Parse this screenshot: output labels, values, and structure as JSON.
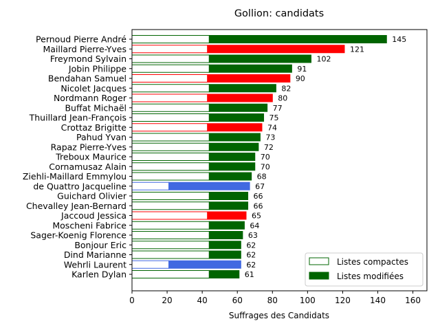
{
  "chart_data": {
    "type": "bar",
    "orientation": "horizontal",
    "stacked": true,
    "title": "Gollion: candidats",
    "xlabel": "Suffrages des Candidats",
    "ylabel": "",
    "xlim": [
      0,
      168
    ],
    "xticks": [
      0,
      20,
      40,
      60,
      80,
      100,
      120,
      140,
      160
    ],
    "grid": false,
    "legend": {
      "placement": "bottom-right",
      "entries": [
        {
          "label": "Listes compactes",
          "style": "outline",
          "color": "#006400"
        },
        {
          "label": "Listes modifiées",
          "style": "filled",
          "color": "#006400"
        }
      ]
    },
    "categories": [
      "Pernoud Pierre André",
      "Maillard Pierre-Yves",
      "Freymond Sylvain",
      "Jobin Philippe",
      "Bendahan Samuel",
      "Nicolet Jacques",
      "Nordmann Roger",
      "Buffat Michaël",
      "Thuillard Jean-François",
      "Crottaz Brigitte",
      "Pahud Yvan",
      "Rapaz Pierre-Yves",
      "Treboux Maurice",
      "Cornamusaz Alain",
      "Ziehli-Maillard Emmylou",
      "de Quattro Jacqueline",
      "Guichard Olivier",
      "Chevalley Jean-Bernard",
      "Jaccoud Jessica",
      "Moscheni Fabrice",
      "Sager-Koenig Florence",
      "Bonjour Eric",
      "Dind Marianne",
      "Wehrli Laurent",
      "Karlen Dylan"
    ],
    "colors": [
      "#006400",
      "#ff0000",
      "#006400",
      "#006400",
      "#ff0000",
      "#006400",
      "#ff0000",
      "#006400",
      "#006400",
      "#ff0000",
      "#006400",
      "#006400",
      "#006400",
      "#006400",
      "#006400",
      "#4169e1",
      "#006400",
      "#006400",
      "#ff0000",
      "#006400",
      "#006400",
      "#006400",
      "#006400",
      "#4169e1",
      "#006400"
    ],
    "series": [
      {
        "name": "Listes compactes",
        "values": [
          44,
          43,
          44,
          44,
          43,
          44,
          43,
          44,
          44,
          43,
          44,
          44,
          44,
          44,
          44,
          21,
          44,
          44,
          43,
          44,
          44,
          44,
          44,
          21,
          44
        ]
      },
      {
        "name": "Listes modifiées",
        "values": [
          101,
          78,
          58,
          47,
          47,
          38,
          37,
          33,
          31,
          31,
          29,
          28,
          26,
          26,
          24,
          46,
          22,
          22,
          22,
          20,
          19,
          18,
          18,
          41,
          17
        ]
      }
    ],
    "totals": [
      145,
      121,
      102,
      91,
      90,
      82,
      80,
      77,
      75,
      74,
      73,
      72,
      70,
      70,
      68,
      67,
      66,
      66,
      65,
      64,
      63,
      62,
      62,
      62,
      61
    ]
  }
}
